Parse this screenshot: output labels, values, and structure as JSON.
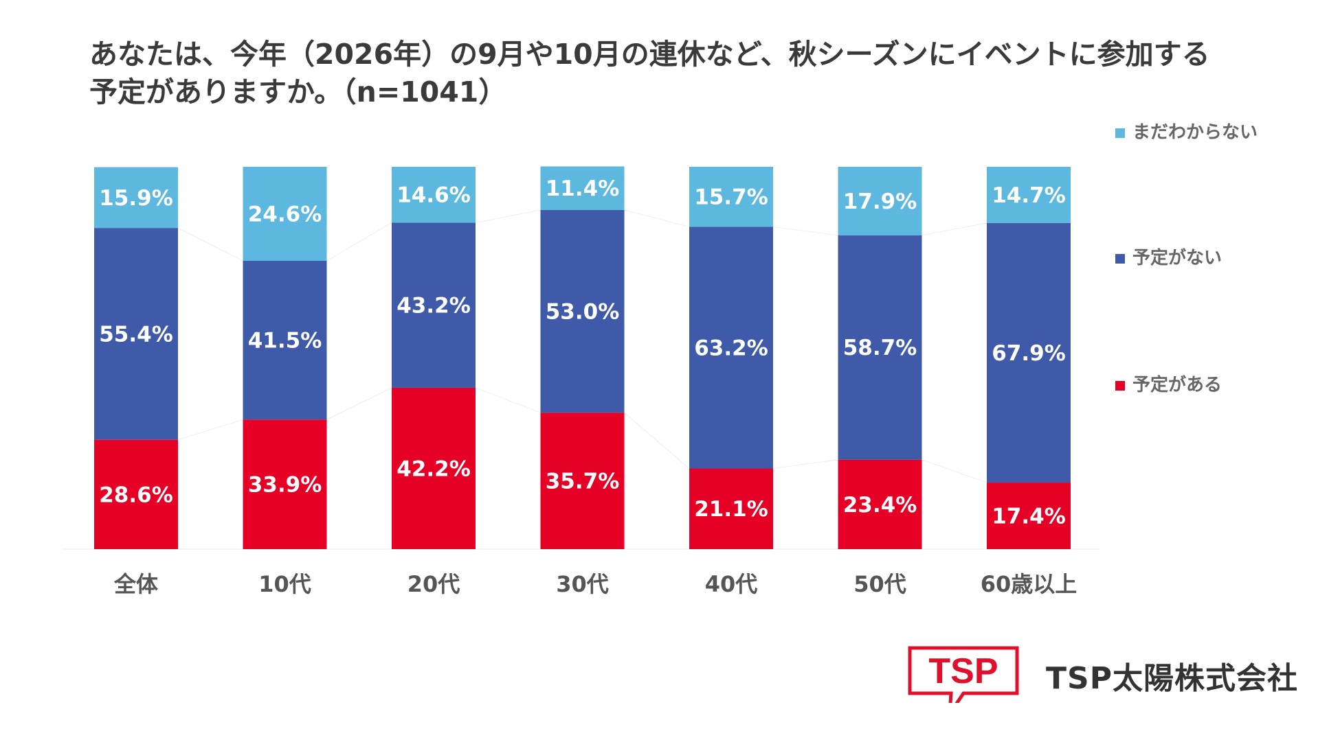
{
  "title_lines": [
    "あなたは、今年（2026年）の9月や10月の連休など、秋シーズンにイベントに参加する",
    "予定がありますか。（n=1041）"
  ],
  "chart_data": {
    "type": "bar",
    "stacked": true,
    "categories": [
      "全体",
      "10代",
      "20代",
      "30代",
      "40代",
      "50代",
      "60歳以上"
    ],
    "series": [
      {
        "name": "予定がある",
        "color": "#e60026",
        "values": [
          28.6,
          33.9,
          42.2,
          35.7,
          21.1,
          23.4,
          17.4
        ]
      },
      {
        "name": "予定がない",
        "color": "#3f5aa8",
        "values": [
          55.4,
          41.5,
          43.2,
          53.0,
          63.2,
          58.7,
          67.9
        ]
      },
      {
        "name": "まだわからない",
        "color": "#5cb8de",
        "values": [
          15.9,
          24.6,
          14.6,
          11.4,
          15.7,
          17.9,
          14.7
        ]
      }
    ],
    "value_suffix": "%",
    "legend_position": "right",
    "ylim": [
      0,
      100
    ],
    "grid": false
  },
  "logo": {
    "text": "TSP",
    "color": "#e0102d"
  },
  "company_name": "TSP太陽株式会社"
}
